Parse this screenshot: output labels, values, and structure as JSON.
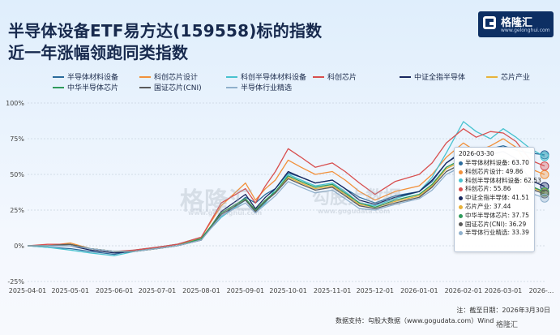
{
  "title_line1": "半导体设备ETF易方达(159558)标的指数",
  "title_line2": "近一年涨幅领跑同类指数",
  "brand": {
    "name": "格隆汇",
    "url": "www.gelonghui.com",
    "navy": "#0d2f63"
  },
  "watermark": {
    "brand": "格隆汇",
    "brand_url": "www.gelonghui.com",
    "name": "勾股大数据",
    "url": "www.gogudata.com"
  },
  "tooltip": {
    "date": "2026-03-30",
    "rows": [
      {
        "name": "半导体材料设备",
        "value": "63.70",
        "color": "#2a6b9c"
      },
      {
        "name": "科创芯片设计",
        "value": "49.86",
        "color": "#f2913b"
      },
      {
        "name": "科创半导体材料设备",
        "value": "62.53",
        "color": "#48c2cf"
      },
      {
        "name": "科创芯片",
        "value": "55.86",
        "color": "#d84f4f"
      },
      {
        "name": "中证全指半导体",
        "value": "41.51",
        "color": "#18275f"
      },
      {
        "name": "芯片产业",
        "value": "37.44",
        "color": "#e8b23a"
      },
      {
        "name": "中华半导体芯片",
        "value": "37.75",
        "color": "#2f9a5c"
      },
      {
        "name": "国证芯片(CNI)",
        "value": "36.29",
        "color": "#5a5a5a"
      },
      {
        "name": "半导体行业精选",
        "value": "33.39",
        "color": "#8fb0cc"
      }
    ]
  },
  "note": "注：截至日期：2026年3月30日",
  "source": "数据支持：勾股大数据（www.gogudata.com）Wind",
  "chart_data": {
    "type": "line",
    "x": [
      "2025-04-01",
      "2025-04-15",
      "2025-05-01",
      "2025-05-15",
      "2025-06-01",
      "2025-06-15",
      "2025-07-01",
      "2025-07-15",
      "2025-08-01",
      "2025-08-15",
      "2025-09-01",
      "2025-09-08",
      "2025-09-15",
      "2025-09-22",
      "2025-10-01",
      "2025-10-10",
      "2025-10-20",
      "2025-11-01",
      "2025-11-10",
      "2025-11-20",
      "2025-12-01",
      "2025-12-15",
      "2026-01-01",
      "2026-01-10",
      "2026-01-20",
      "2026-02-01",
      "2026-02-10",
      "2026-02-20",
      "2026-03-01",
      "2026-03-10",
      "2026-03-20",
      "2026-03-30"
    ],
    "x_ticks": [
      "2025-04-01",
      "2025-05-01",
      "2025-06-01",
      "2025-07-01",
      "2025-08-01",
      "2025-09-01",
      "2025-10-01",
      "2025-11-01",
      "2025-12-01",
      "2026-01-01",
      "2026-02-01",
      "2026-03-01",
      "2026-..."
    ],
    "y_ticks": [
      "-25%",
      "0%",
      "25%",
      "50%",
      "75%",
      "100%"
    ],
    "ylim": [
      -25,
      100
    ],
    "grid": true,
    "legend_position": "top",
    "series": [
      {
        "name": "半导体材料设备",
        "color": "#2a6b9c",
        "values": [
          0,
          -1,
          -2,
          -4,
          -6,
          -3,
          -1,
          1,
          5,
          20,
          34,
          30,
          36,
          40,
          51,
          48,
          44,
          46,
          40,
          34,
          30,
          35,
          38,
          45,
          58,
          67,
          63,
          68,
          70,
          67,
          65,
          63.7
        ]
      },
      {
        "name": "科创芯片设计",
        "color": "#f2913b",
        "values": [
          0,
          0,
          2,
          -2,
          -4,
          -4,
          -2,
          0,
          6,
          28,
          44,
          32,
          40,
          46,
          60,
          55,
          50,
          52,
          46,
          38,
          32,
          38,
          42,
          50,
          62,
          72,
          66,
          70,
          75,
          69,
          54,
          49.86
        ]
      },
      {
        "name": "科创半导体材料设备",
        "color": "#48c2cf",
        "values": [
          0,
          -1,
          -3,
          -5,
          -7,
          -4,
          -1,
          1,
          6,
          20,
          32,
          24,
          30,
          40,
          50,
          46,
          42,
          44,
          38,
          30,
          28,
          33,
          38,
          48,
          65,
          87,
          80,
          75,
          82,
          76,
          68,
          62.53
        ]
      },
      {
        "name": "科创芯片",
        "color": "#d84f4f",
        "values": [
          0,
          1,
          1,
          -2,
          -4,
          -3,
          -1,
          1,
          6,
          30,
          40,
          30,
          42,
          52,
          68,
          62,
          55,
          58,
          52,
          44,
          36,
          45,
          50,
          58,
          72,
          82,
          76,
          80,
          79,
          73,
          60,
          55.86
        ]
      },
      {
        "name": "中证全指半导体",
        "color": "#18275f",
        "values": [
          0,
          0,
          0,
          -3,
          -5,
          -4,
          -2,
          0,
          4,
          24,
          36,
          26,
          34,
          40,
          52,
          48,
          44,
          46,
          40,
          32,
          29,
          34,
          38,
          46,
          58,
          66,
          62,
          64,
          66,
          61,
          46,
          41.51
        ]
      },
      {
        "name": "芯片产业",
        "color": "#e8b23a",
        "values": [
          0,
          0,
          1,
          -2,
          -4,
          -4,
          -2,
          0,
          5,
          23,
          33,
          25,
          32,
          37,
          48,
          44,
          40,
          42,
          36,
          29,
          27,
          31,
          35,
          42,
          54,
          60,
          56,
          58,
          60,
          55,
          41,
          37.44
        ]
      },
      {
        "name": "中华半导体芯片",
        "color": "#2f9a5c",
        "values": [
          0,
          0,
          1,
          -2,
          -4,
          -4,
          -2,
          0,
          5,
          23,
          33,
          25,
          32,
          38,
          49,
          45,
          41,
          43,
          37,
          30,
          27,
          32,
          36,
          43,
          55,
          61,
          57,
          59,
          61,
          56,
          42,
          37.75
        ]
      },
      {
        "name": "国证芯片(CNI)",
        "color": "#5a5a5a",
        "values": [
          0,
          0,
          1,
          -2,
          -4,
          -4,
          -2,
          0,
          4,
          22,
          32,
          24,
          31,
          37,
          47,
          43,
          39,
          41,
          35,
          28,
          26,
          30,
          34,
          41,
          52,
          58,
          54,
          56,
          58,
          53,
          40,
          36.29
        ]
      },
      {
        "name": "半导体行业精选",
        "color": "#8fb0cc",
        "values": [
          0,
          0,
          0,
          -2,
          -4,
          -4,
          -2,
          0,
          4,
          21,
          30,
          23,
          29,
          35,
          45,
          41,
          37,
          39,
          33,
          26,
          25,
          29,
          33,
          39,
          50,
          56,
          52,
          54,
          56,
          51,
          37,
          33.39
        ]
      }
    ]
  }
}
